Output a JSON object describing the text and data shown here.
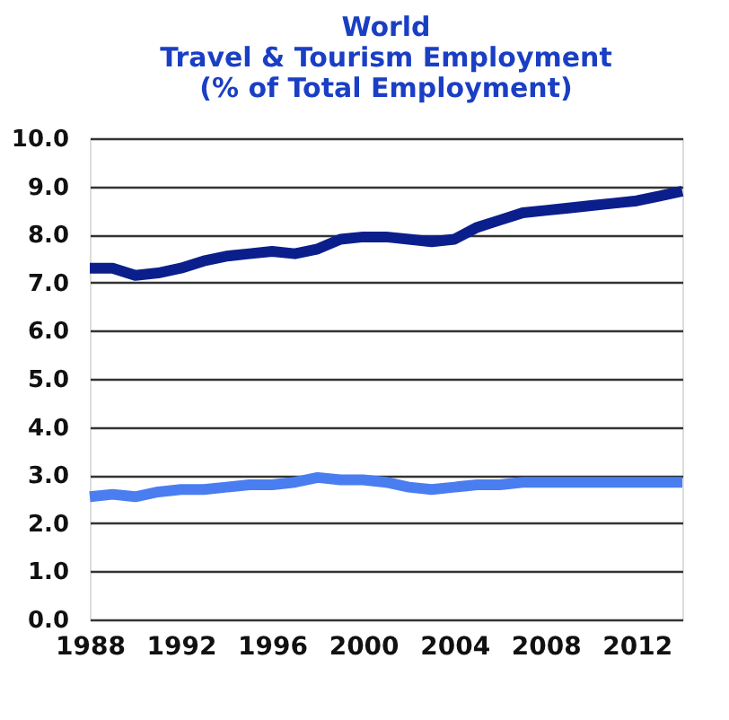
{
  "chart_data": {
    "type": "line",
    "title": [
      "World",
      "Travel & Tourism Employment",
      "(% of Total Employment)"
    ],
    "x": [
      1988,
      1989,
      1990,
      1991,
      1992,
      1993,
      1994,
      1995,
      1996,
      1997,
      1998,
      1999,
      2000,
      2001,
      2002,
      2003,
      2004,
      2005,
      2006,
      2007,
      2008,
      2009,
      2010,
      2011,
      2012,
      2013,
      2014
    ],
    "series": [
      {
        "color": "#0b1f8c",
        "values": [
          7.3,
          7.3,
          7.15,
          7.2,
          7.3,
          7.45,
          7.55,
          7.6,
          7.65,
          7.6,
          7.7,
          7.9,
          7.95,
          7.95,
          7.9,
          7.85,
          7.9,
          8.15,
          8.3,
          8.45,
          8.5,
          8.55,
          8.6,
          8.65,
          8.7,
          8.8,
          8.9
        ]
      },
      {
        "color": "#4a7ef0",
        "values": [
          2.55,
          2.6,
          2.55,
          2.65,
          2.7,
          2.7,
          2.75,
          2.8,
          2.8,
          2.85,
          2.95,
          2.9,
          2.9,
          2.85,
          2.75,
          2.7,
          2.75,
          2.8,
          2.8,
          2.85,
          2.85,
          2.85,
          2.85,
          2.85,
          2.85,
          2.85,
          2.85
        ]
      }
    ],
    "xlim": [
      1988,
      2014
    ],
    "xticks": [
      1988,
      1992,
      1996,
      2000,
      2004,
      2008,
      2012
    ],
    "ylim": [
      0,
      10
    ],
    "yticks": [
      {
        "value": 0,
        "label": "0.0"
      },
      {
        "value": 1,
        "label": "1.0"
      },
      {
        "value": 2,
        "label": "2.0"
      },
      {
        "value": 3,
        "label": "3.0"
      },
      {
        "value": 4,
        "label": "4.0"
      },
      {
        "value": 5,
        "label": "5.0"
      },
      {
        "value": 6,
        "label": "6.0"
      },
      {
        "value": 7,
        "label": "7.0"
      },
      {
        "value": 8,
        "label": "8.0"
      },
      {
        "value": 9,
        "label": "9.0"
      },
      {
        "value": 10,
        "label": "10.0"
      }
    ],
    "grid": "y",
    "legend": false,
    "line_style": "solid"
  }
}
